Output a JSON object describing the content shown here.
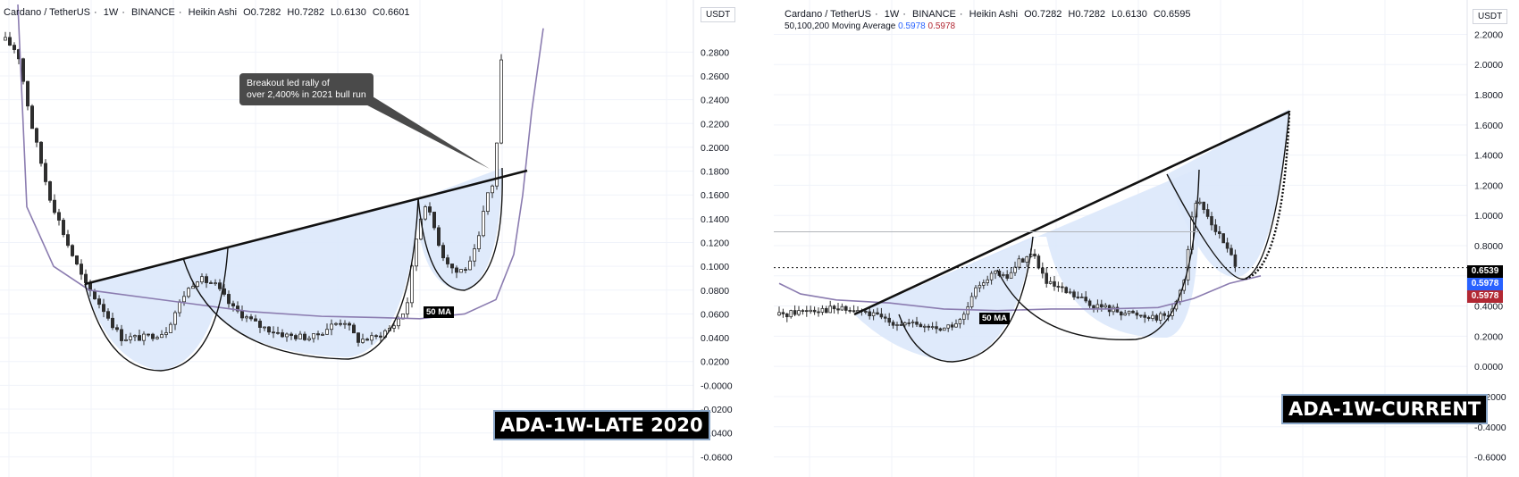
{
  "left": {
    "header": {
      "symbol": "Cardano / TetherUS",
      "interval": "1W",
      "exchange": "BINANCE",
      "style": "Heikin Ashi",
      "open": "O0.7282",
      "high": "H0.7282",
      "low": "L0.6130",
      "close": "C0.6601",
      "sep": "·"
    },
    "currency": "USDT",
    "y_ticks": [
      "0.2800",
      "0.2600",
      "0.2400",
      "0.2200",
      "0.2000",
      "0.1800",
      "0.1600",
      "0.1400",
      "0.1200",
      "0.1000",
      "0.0800",
      "0.0600",
      "0.0400",
      "0.0200",
      "-0.0000",
      "-0.0200",
      "-0.0400",
      "-0.0600"
    ],
    "callout_line1": "Breakout led rally of",
    "callout_line2": "over 2,400% in 2021 bull run",
    "ma_tag": "50 MA",
    "title_tag": "ADA-1W-LATE 2020"
  },
  "right": {
    "header": {
      "symbol": "Cardano / TetherUS",
      "interval": "1W",
      "exchange": "BINANCE",
      "style": "Heikin Ashi",
      "open": "O0.7282",
      "high": "H0.7282",
      "low": "L0.6130",
      "close": "C0.6595",
      "sep": "·"
    },
    "ma_header_label": "50,100,200 Moving Average",
    "ma_value_1": "0.5978",
    "ma_value_2": "0.5978",
    "currency": "USDT",
    "y_ticks": [
      "2.2000",
      "2.0000",
      "1.8000",
      "1.6000",
      "1.4000",
      "1.2000",
      "1.0000",
      "0.8000",
      "0.6000",
      "0.4000",
      "0.2000",
      "0.0000",
      "-0.2000",
      "-0.4000",
      "-0.6000"
    ],
    "price_badges": [
      "0.6539",
      "0.5978",
      "0.5978"
    ],
    "ma_tag": "50 MA",
    "title_tag": "ADA-1W-CURRENT"
  },
  "colors": {
    "bull": "#2e2e2e",
    "bear": "#2e2e2e",
    "ma": "#8b7cb0",
    "fill": "#dce8fb",
    "badge_close": "#000000",
    "badge_ma_blue": "#2962ff",
    "badge_ma_red": "#b22833"
  },
  "chart_data": [
    {
      "type": "candlestick",
      "title": "ADA-1W-LATE 2020",
      "symbol": "Cardano / TetherUS",
      "ylim": [
        -0.065,
        0.29
      ],
      "series": [
        {
          "name": "50 MA",
          "values": [
            0.069,
            0.062,
            0.059,
            0.057,
            0.057,
            0.056,
            0.055,
            0.055,
            0.053,
            0.05,
            0.057,
            0.067,
            0.09,
            0.12,
            0.16,
            0.25
          ]
        }
      ],
      "annotations": [
        "Breakout led rally of over 2,400% in 2021 bull run",
        "50 MA",
        "ADA-1W-LATE 2020"
      ],
      "pattern_neckline": [
        [
          0.084
        ],
        [
          0.17
        ]
      ]
    },
    {
      "type": "candlestick",
      "title": "ADA-1W-CURRENT",
      "symbol": "Cardano / TetherUS",
      "ylim": [
        -0.65,
        2.25
      ],
      "series": [
        {
          "name": "50 MA",
          "values": [
            0.55,
            0.48,
            0.44,
            0.42,
            0.38,
            0.37,
            0.37,
            0.38,
            0.39,
            0.38,
            0.38,
            0.39,
            0.4,
            0.5,
            0.57,
            0.6
          ]
        }
      ],
      "annotations": [
        "50 MA",
        "ADA-1W-CURRENT"
      ],
      "last_price": 0.6539,
      "ma_values": [
        0.5978,
        0.5978
      ]
    }
  ]
}
